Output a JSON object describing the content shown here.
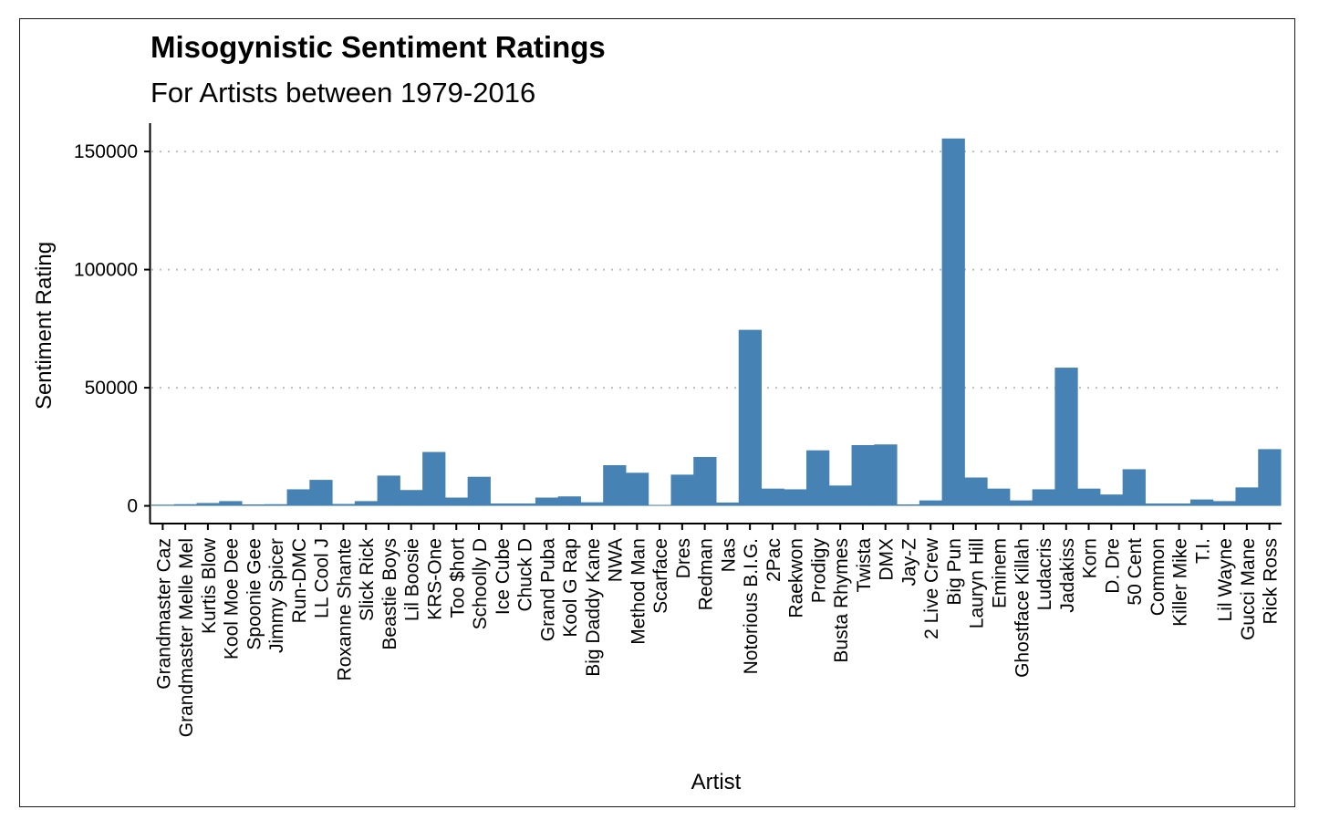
{
  "chart_data": {
    "type": "bar",
    "title": "Misogynistic Sentiment Ratings",
    "subtitle": "For Artists between 1979-2016",
    "xlabel": "Artist",
    "ylabel": "Sentiment Rating",
    "ylim": [
      -7500,
      162000
    ],
    "yticks": [
      0,
      50000,
      100000,
      150000
    ],
    "grid": "horizontal-dotted",
    "bar_color": "#4682b4",
    "categories": [
      "Grandmaster Caz",
      "Grandmaster Melle Mel",
      "Kurtis Blow",
      "Kool Moe Dee",
      "Spoonie Gee",
      "Jimmy Spicer",
      "Run-DMC",
      "LL Cool J",
      "Roxanne Shante",
      "Slick Rick",
      "Beastie Boys",
      "Lil Boosie",
      "KRS-One",
      "Too $hort",
      "Schoolly D",
      "Ice Cube",
      "Chuck D",
      "Grand Puba",
      "Kool G Rap",
      "Big Daddy Kane",
      "NWA",
      "Method Man",
      "Scarface",
      "Dres",
      "Redman",
      "Nas",
      "Notorious B.I.G.",
      "2Pac",
      "Raekwon",
      "Prodigy",
      "Busta Rhymes",
      "Twista",
      "DMX",
      "Jay-Z",
      "2 Live Crew",
      "Big Pun",
      "Lauryn Hill",
      "Eminem",
      "Ghostface Killah",
      "Ludacris",
      "Jadakiss",
      "Korn",
      "D. Dre",
      "50 Cent",
      "Common",
      "Killer Mike",
      "T.I.",
      "Lil Wayne",
      "Gucci Mane",
      "Rick Ross"
    ],
    "values": [
      500,
      700,
      1200,
      2000,
      600,
      700,
      7000,
      11000,
      800,
      2000,
      12800,
      6700,
      22800,
      3500,
      12300,
      1000,
      1000,
      3500,
      4000,
      1500,
      17200,
      14000,
      400,
      13200,
      20700,
      1400,
      74500,
      7300,
      7000,
      23500,
      8600,
      25700,
      26000,
      600,
      2300,
      155500,
      12000,
      7300,
      2300,
      7000,
      58500,
      7300,
      4800,
      15500,
      1000,
      1000,
      2700,
      2000,
      7800,
      24000
    ]
  }
}
